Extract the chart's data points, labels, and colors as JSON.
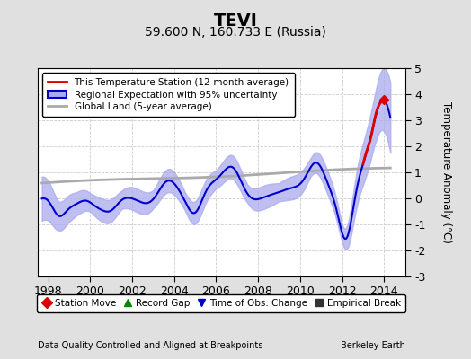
{
  "title": "TEVI",
  "subtitle": "59.600 N, 160.733 E (Russia)",
  "ylabel": "Temperature Anomaly (°C)",
  "footer_left": "Data Quality Controlled and Aligned at Breakpoints",
  "footer_right": "Berkeley Earth",
  "xlim": [
    1997.5,
    2015.0
  ],
  "ylim": [
    -3.0,
    5.0
  ],
  "yticks": [
    -3,
    -2,
    -1,
    0,
    1,
    2,
    3,
    4,
    5
  ],
  "xticks": [
    1998,
    2000,
    2002,
    2004,
    2006,
    2008,
    2010,
    2012,
    2014
  ],
  "bg_color": "#e0e0e0",
  "plot_bg_color": "#ffffff",
  "grid_color": "#cccccc",
  "blue_line_color": "#0000cc",
  "blue_fill_color": "#aaaaee",
  "red_line_color": "#dd0000",
  "gray_line_color": "#aaaaaa",
  "title_fontsize": 14,
  "subtitle_fontsize": 10,
  "legend1_entries": [
    {
      "label": "This Temperature Station (12-month average)",
      "color": "#dd0000",
      "lw": 2
    },
    {
      "label": "Regional Expectation with 95% uncertainty",
      "color": "#0000cc",
      "lw": 2
    },
    {
      "label": "Global Land (5-year average)",
      "color": "#aaaaaa",
      "lw": 2
    }
  ],
  "legend2_entries": [
    {
      "label": "Station Move",
      "color": "#dd0000",
      "marker": "D"
    },
    {
      "label": "Record Gap",
      "color": "#008800",
      "marker": "^"
    },
    {
      "label": "Time of Obs. Change",
      "color": "#0000cc",
      "marker": "v"
    },
    {
      "label": "Empirical Break",
      "color": "#333333",
      "marker": "s"
    }
  ]
}
